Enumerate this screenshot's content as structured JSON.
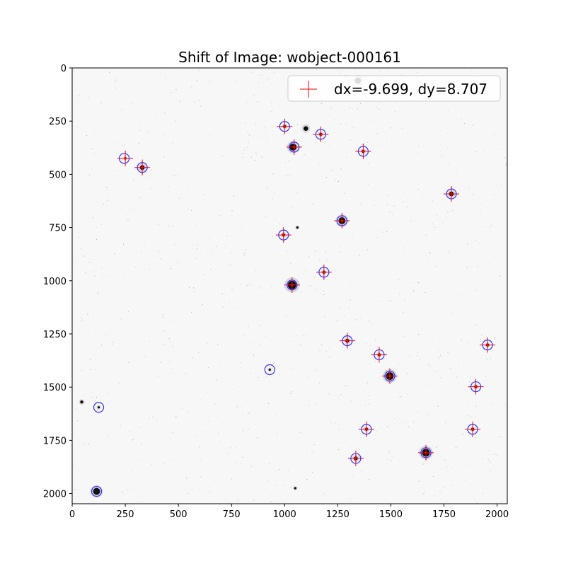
{
  "chart_data": {
    "type": "scatter",
    "title": "Shift of Image: wobject-000161",
    "xlabel": "",
    "ylabel": "",
    "xlim": [
      0,
      2048
    ],
    "ylim": [
      2048,
      0
    ],
    "y_inverted": true,
    "x_ticks": [
      "0",
      "250",
      "500",
      "750",
      "1000",
      "1250",
      "1500",
      "1750",
      "2000"
    ],
    "y_ticks": [
      "0",
      "250",
      "500",
      "750",
      "1000",
      "1250",
      "1500",
      "1750",
      "2000"
    ],
    "background": "grayscale astronomical star field image",
    "legend": {
      "placement": "top-right",
      "label": "dx=-9.699, dy=8.707"
    },
    "shift": {
      "dx": -9.699,
      "dy": 8.707
    },
    "series": [
      {
        "marker": "red plus",
        "color": "#ff0000",
        "points": [
          [
            250,
            425
          ],
          [
            330,
            468
          ],
          [
            1000,
            275
          ],
          [
            1045,
            372
          ],
          [
            1170,
            312
          ],
          [
            1370,
            392
          ],
          [
            1785,
            592
          ],
          [
            1270,
            718
          ],
          [
            995,
            785
          ],
          [
            1185,
            960
          ],
          [
            1035,
            1020
          ],
          [
            1295,
            1282
          ],
          [
            1445,
            1348
          ],
          [
            1495,
            1448
          ],
          [
            1955,
            1302
          ],
          [
            1900,
            1498
          ],
          [
            1385,
            1698
          ],
          [
            1885,
            1698
          ],
          [
            1335,
            1835
          ],
          [
            1665,
            1808
          ]
        ]
      },
      {
        "marker": "blue circle",
        "color": "#3333ff",
        "points": [
          [
            245,
            425
          ],
          [
            330,
            468
          ],
          [
            1000,
            275
          ],
          [
            1045,
            372
          ],
          [
            1170,
            312
          ],
          [
            1370,
            392
          ],
          [
            1785,
            592
          ],
          [
            1270,
            718
          ],
          [
            995,
            785
          ],
          [
            1185,
            960
          ],
          [
            1035,
            1020
          ],
          [
            1295,
            1282
          ],
          [
            1445,
            1348
          ],
          [
            1495,
            1448
          ],
          [
            1955,
            1302
          ],
          [
            1900,
            1498
          ],
          [
            1385,
            1698
          ],
          [
            1885,
            1698
          ],
          [
            1335,
            1835
          ],
          [
            1665,
            1808
          ],
          [
            930,
            1418
          ],
          [
            125,
            1595
          ],
          [
            115,
            1990
          ]
        ]
      }
    ],
    "background_sources": [
      [
        1040,
        372,
        9
      ],
      [
        1270,
        718,
        9
      ],
      [
        1035,
        1020,
        11
      ],
      [
        1495,
        1448,
        10
      ],
      [
        1665,
        1808,
        10
      ],
      [
        115,
        1990,
        9
      ],
      [
        330,
        468,
        6
      ],
      [
        1785,
        592,
        6
      ],
      [
        1295,
        1282,
        5
      ],
      [
        1335,
        1835,
        5
      ],
      [
        1385,
        1698,
        4
      ],
      [
        1885,
        1698,
        4
      ],
      [
        1955,
        1302,
        4
      ],
      [
        1900,
        1498,
        4
      ],
      [
        1445,
        1348,
        4
      ],
      [
        1185,
        960,
        4
      ],
      [
        995,
        785,
        4
      ],
      [
        1170,
        312,
        4
      ],
      [
        1370,
        392,
        4
      ],
      [
        1000,
        275,
        4
      ],
      [
        250,
        425,
        3
      ],
      [
        1100,
        285,
        6
      ],
      [
        1345,
        60,
        8
      ],
      [
        1060,
        750,
        3
      ],
      [
        45,
        1570,
        4
      ],
      [
        930,
        1418,
        3
      ],
      [
        125,
        1595,
        3
      ],
      [
        1050,
        1975,
        3
      ]
    ]
  }
}
